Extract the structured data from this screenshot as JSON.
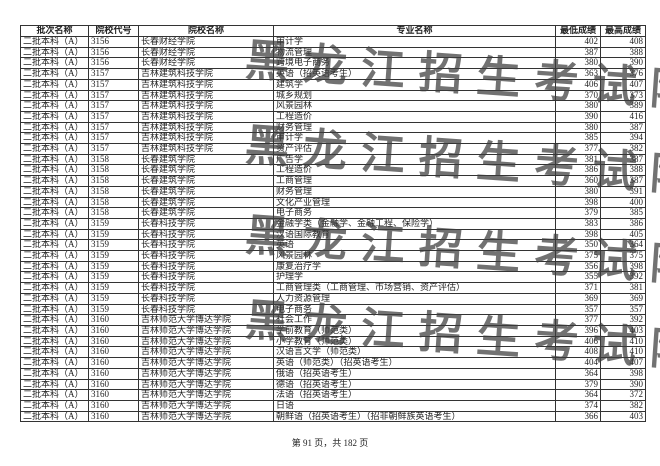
{
  "table": {
    "headers": [
      "批次名称",
      "院校代号",
      "院校名称",
      "专业名称",
      "最低成绩",
      "最高成绩"
    ],
    "rows": [
      [
        "二批本科（A）",
        "3156",
        "长春财经学院",
        "审计学",
        "402",
        "408"
      ],
      [
        "二批本科（A）",
        "3156",
        "长春财经学院",
        "物流管理",
        "387",
        "388"
      ],
      [
        "二批本科（A）",
        "3156",
        "长春财经学院",
        "跨境电子商务",
        "380",
        "390"
      ],
      [
        "二批本科（A）",
        "3157",
        "吉林建筑科技学院",
        "英语（招英语考生）",
        "363",
        "376"
      ],
      [
        "二批本科（A）",
        "3157",
        "吉林建筑科技学院",
        "建筑学",
        "406",
        "407"
      ],
      [
        "二批本科（A）",
        "3157",
        "吉林建筑科技学院",
        "城乡规划",
        "370",
        "373"
      ],
      [
        "二批本科（A）",
        "3157",
        "吉林建筑科技学院",
        "风景园林",
        "380",
        "389"
      ],
      [
        "二批本科（A）",
        "3157",
        "吉林建筑科技学院",
        "工程造价",
        "390",
        "416"
      ],
      [
        "二批本科（A）",
        "3157",
        "吉林建筑科技学院",
        "财务管理",
        "380",
        "387"
      ],
      [
        "二批本科（A）",
        "3157",
        "吉林建筑科技学院",
        "审计学",
        "385",
        "394"
      ],
      [
        "二批本科（A）",
        "3157",
        "吉林建筑科技学院",
        "资产评估",
        "377",
        "382"
      ],
      [
        "二批本科（A）",
        "3158",
        "长春建筑学院",
        "广告学",
        "381",
        "387"
      ],
      [
        "二批本科（A）",
        "3158",
        "长春建筑学院",
        "工程造价",
        "386",
        "388"
      ],
      [
        "二批本科（A）",
        "3158",
        "长春建筑学院",
        "工商管理",
        "360",
        "387"
      ],
      [
        "二批本科（A）",
        "3158",
        "长春建筑学院",
        "财务管理",
        "380",
        "391"
      ],
      [
        "二批本科（A）",
        "3158",
        "长春建筑学院",
        "文化产业管理",
        "398",
        "400"
      ],
      [
        "二批本科（A）",
        "3158",
        "长春建筑学院",
        "电子商务",
        "379",
        "385"
      ],
      [
        "二批本科（A）",
        "3159",
        "长春科技学院",
        "金融学类（金融学、金融工程、保险学）",
        "383",
        "386"
      ],
      [
        "二批本科（A）",
        "3159",
        "长春科技学院",
        "汉语国际教育",
        "398",
        "405"
      ],
      [
        "二批本科（A）",
        "3159",
        "长春科技学院",
        "英语",
        "350",
        "364"
      ],
      [
        "二批本科（A）",
        "3159",
        "长春科技学院",
        "风景园林",
        "375",
        "375"
      ],
      [
        "二批本科（A）",
        "3159",
        "长春科技学院",
        "康复治疗学",
        "356",
        "398"
      ],
      [
        "二批本科（A）",
        "3159",
        "长春科技学院",
        "护理学",
        "355",
        "392"
      ],
      [
        "二批本科（A）",
        "3159",
        "长春科技学院",
        "工商管理类（工商管理、市场营销、资产评估）",
        "371",
        "381"
      ],
      [
        "二批本科（A）",
        "3159",
        "长春科技学院",
        "人力资源管理",
        "369",
        "369"
      ],
      [
        "二批本科（A）",
        "3159",
        "长春科技学院",
        "电子商务",
        "357",
        "357"
      ],
      [
        "二批本科（A）",
        "3160",
        "吉林师范大学博达学院",
        "社会工作",
        "377",
        "392"
      ],
      [
        "二批本科（A）",
        "3160",
        "吉林师范大学博达学院",
        "学前教育（师范类）",
        "396",
        "403"
      ],
      [
        "二批本科（A）",
        "3160",
        "吉林师范大学博达学院",
        "小学教育（师范类）",
        "406",
        "410"
      ],
      [
        "二批本科（A）",
        "3160",
        "吉林师范大学博达学院",
        "汉语言文学（师范类）",
        "408",
        "410"
      ],
      [
        "二批本科（A）",
        "3160",
        "吉林师范大学博达学院",
        "英语（师范类）（招英语考生）",
        "404",
        "407"
      ],
      [
        "二批本科（A）",
        "3160",
        "吉林师范大学博达学院",
        "俄语（招英语考生）",
        "364",
        "398"
      ],
      [
        "二批本科（A）",
        "3160",
        "吉林师范大学博达学院",
        "德语（招英语考生）",
        "379",
        "390"
      ],
      [
        "二批本科（A）",
        "3160",
        "吉林师范大学博达学院",
        "法语（招英语考生）",
        "364",
        "372"
      ],
      [
        "二批本科（A）",
        "3160",
        "吉林师范大学博达学院",
        "日语",
        "374",
        "382"
      ],
      [
        "二批本科（A）",
        "3160",
        "吉林师范大学博达学院",
        "朝鲜语（招英语考生）（招非朝鲜族英语考生）",
        "366",
        "403"
      ]
    ]
  },
  "watermark": "黑龙江招生考试院",
  "footer": "第 91 页，共 182 页"
}
